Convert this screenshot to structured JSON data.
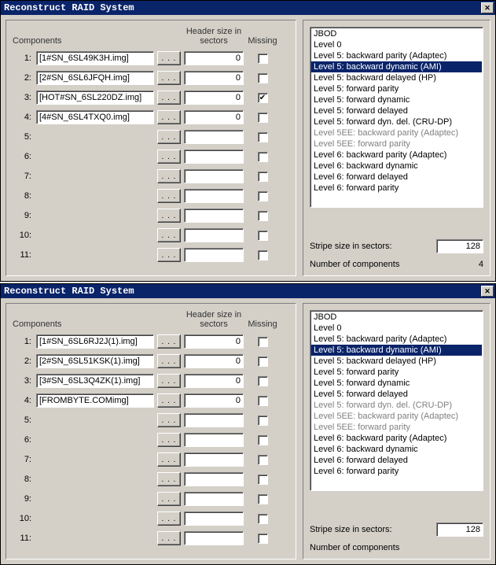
{
  "windows": [
    {
      "title": "Reconstruct RAID System",
      "headers": {
        "components": "Components",
        "header_size": "Header size in sectors",
        "missing": "Missing"
      },
      "browse_label": ". . .",
      "rows": [
        {
          "idx": "1:",
          "name": "[1#SN_6SL49K3H.img]",
          "hasName": true,
          "header": "0",
          "missing": false
        },
        {
          "idx": "2:",
          "name": "[2#SN_6SL6JFQH.img]",
          "hasName": true,
          "header": "0",
          "missing": false
        },
        {
          "idx": "3:",
          "name": "[HOT#SN_6SL220DZ.img]",
          "hasName": true,
          "header": "0",
          "missing": true
        },
        {
          "idx": "4:",
          "name": "[4#SN_6SL4TXQ0.img]",
          "hasName": true,
          "header": "0",
          "missing": false
        },
        {
          "idx": "5:",
          "name": "",
          "hasName": false,
          "header": "",
          "missing": false
        },
        {
          "idx": "6:",
          "name": "",
          "hasName": false,
          "header": "",
          "missing": false
        },
        {
          "idx": "7:",
          "name": "",
          "hasName": false,
          "header": "",
          "missing": false
        },
        {
          "idx": "8:",
          "name": "",
          "hasName": false,
          "header": "",
          "missing": false
        },
        {
          "idx": "9:",
          "name": "",
          "hasName": false,
          "header": "",
          "missing": false
        },
        {
          "idx": "10:",
          "name": "",
          "hasName": false,
          "header": "",
          "missing": false
        },
        {
          "idx": "11:",
          "name": "",
          "hasName": false,
          "header": "",
          "missing": false
        }
      ],
      "raid_levels": [
        {
          "label": "JBOD",
          "sel": false,
          "dim": false
        },
        {
          "label": "Level 0",
          "sel": false,
          "dim": false
        },
        {
          "label": "Level 5: backward parity (Adaptec)",
          "sel": false,
          "dim": false
        },
        {
          "label": "Level 5: backward dynamic (AMI)",
          "sel": true,
          "dim": false
        },
        {
          "label": "Level 5: backward delayed (HP)",
          "sel": false,
          "dim": false
        },
        {
          "label": "Level 5: forward parity",
          "sel": false,
          "dim": false
        },
        {
          "label": "Level 5: forward dynamic",
          "sel": false,
          "dim": false
        },
        {
          "label": "Level 5: forward delayed",
          "sel": false,
          "dim": false
        },
        {
          "label": "Level 5: forward dyn. del. (CRU-DP)",
          "sel": false,
          "dim": false
        },
        {
          "label": "Level 5EE: backward parity (Adaptec)",
          "sel": false,
          "dim": true
        },
        {
          "label": "Level 5EE: forward parity",
          "sel": false,
          "dim": true
        },
        {
          "label": "Level 6: backward parity (Adaptec)",
          "sel": false,
          "dim": false
        },
        {
          "label": "Level 6: backward dynamic",
          "sel": false,
          "dim": false
        },
        {
          "label": "Level 6: forward delayed",
          "sel": false,
          "dim": false
        },
        {
          "label": "Level 6: forward parity",
          "sel": false,
          "dim": false
        }
      ],
      "stripe_label": "Stripe size in sectors:",
      "stripe_value": "128",
      "count_label": "Number of components",
      "count_value": "4"
    },
    {
      "title": "Reconstruct RAID System",
      "headers": {
        "components": "Components",
        "header_size": "Header size in sectors",
        "missing": "Missing"
      },
      "browse_label": ". . .",
      "rows": [
        {
          "idx": "1:",
          "name": "[1#SN_6SL6RJ2J(1).img]",
          "hasName": true,
          "header": "0",
          "missing": false
        },
        {
          "idx": "2:",
          "name": "[2#SN_6SL51KSK(1).img]",
          "hasName": true,
          "header": "0",
          "missing": false
        },
        {
          "idx": "3:",
          "name": "[3#SN_6SL3Q4ZK(1).img]",
          "hasName": true,
          "header": "0",
          "missing": false
        },
        {
          "idx": "4:",
          "name": "[FROMBYTE.COMimg]",
          "hasName": true,
          "header": "0",
          "missing": false
        },
        {
          "idx": "5:",
          "name": "",
          "hasName": false,
          "header": "",
          "missing": false
        },
        {
          "idx": "6:",
          "name": "",
          "hasName": false,
          "header": "",
          "missing": false
        },
        {
          "idx": "7:",
          "name": "",
          "hasName": false,
          "header": "",
          "missing": false
        },
        {
          "idx": "8:",
          "name": "",
          "hasName": false,
          "header": "",
          "missing": false
        },
        {
          "idx": "9:",
          "name": "",
          "hasName": false,
          "header": "",
          "missing": false
        },
        {
          "idx": "10:",
          "name": "",
          "hasName": false,
          "header": "",
          "missing": false
        },
        {
          "idx": "11:",
          "name": "",
          "hasName": false,
          "header": "",
          "missing": false
        }
      ],
      "raid_levels": [
        {
          "label": "JBOD",
          "sel": false,
          "dim": false
        },
        {
          "label": "Level 0",
          "sel": false,
          "dim": false
        },
        {
          "label": "Level 5: backward parity (Adaptec)",
          "sel": false,
          "dim": false
        },
        {
          "label": "Level 5: backward dynamic (AMI)",
          "sel": true,
          "dim": false
        },
        {
          "label": "Level 5: backward delayed (HP)",
          "sel": false,
          "dim": false
        },
        {
          "label": "Level 5: forward parity",
          "sel": false,
          "dim": false
        },
        {
          "label": "Level 5: forward dynamic",
          "sel": false,
          "dim": false
        },
        {
          "label": "Level 5: forward delayed",
          "sel": false,
          "dim": false
        },
        {
          "label": "Level 5: forward dyn. del. (CRU-DP)",
          "sel": false,
          "dim": true
        },
        {
          "label": "Level 5EE: backward parity (Adaptec)",
          "sel": false,
          "dim": true
        },
        {
          "label": "Level 5EE: forward parity",
          "sel": false,
          "dim": true
        },
        {
          "label": "Level 6: backward parity (Adaptec)",
          "sel": false,
          "dim": false
        },
        {
          "label": "Level 6: backward dynamic",
          "sel": false,
          "dim": false
        },
        {
          "label": "Level 6: forward delayed",
          "sel": false,
          "dim": false
        },
        {
          "label": "Level 6: forward parity",
          "sel": false,
          "dim": false
        }
      ],
      "stripe_label": "Stripe size in sectors:",
      "stripe_value": "128",
      "count_label": "Number of components",
      "count_value": ""
    }
  ]
}
